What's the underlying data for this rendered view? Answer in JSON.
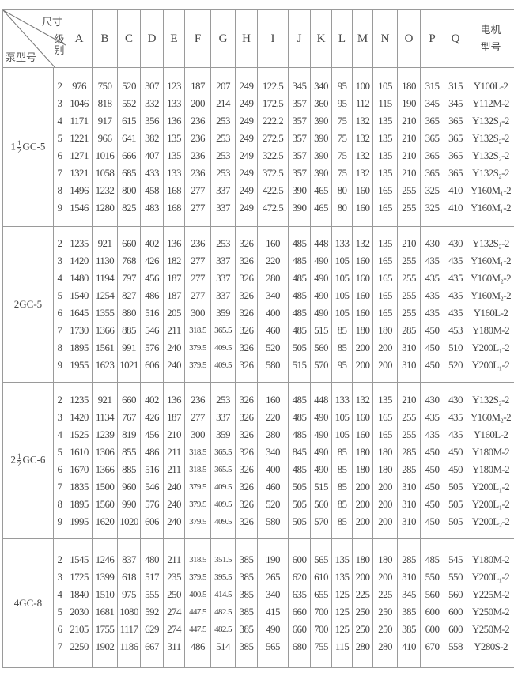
{
  "header": {
    "corner_top": "尺寸",
    "corner_mid": "级别",
    "corner_bottom": "泵型号",
    "columns": [
      "A",
      "B",
      "C",
      "D",
      "E",
      "F",
      "G",
      "H",
      "I",
      "J",
      "K",
      "L",
      "M",
      "N",
      "O",
      "P",
      "Q"
    ],
    "motor_line1": "电机",
    "motor_line2": "型号"
  },
  "groups": [
    {
      "pump": {
        "whole": "1",
        "num": "1",
        "den": "2",
        "rest": "GC-5"
      },
      "rows": [
        {
          "level": "2",
          "values": [
            "976",
            "750",
            "520",
            "307",
            "123",
            "187",
            "207",
            "249",
            "122.5",
            "345",
            "340",
            "95",
            "100",
            "105",
            "180",
            "315",
            "315"
          ],
          "motor": "Y100L-2"
        },
        {
          "level": "3",
          "values": [
            "1046",
            "818",
            "552",
            "332",
            "133",
            "200",
            "214",
            "249",
            "172.5",
            "357",
            "360",
            "95",
            "112",
            "115",
            "190",
            "345",
            "345"
          ],
          "motor": "Y112M-2"
        },
        {
          "level": "4",
          "values": [
            "1171",
            "917",
            "615",
            "356",
            "136",
            "236",
            "253",
            "249",
            "222.2",
            "357",
            "390",
            "75",
            "132",
            "135",
            "210",
            "365",
            "365"
          ],
          "motor": "Y132S₁-2"
        },
        {
          "level": "5",
          "values": [
            "1221",
            "966",
            "641",
            "382",
            "135",
            "236",
            "253",
            "249",
            "272.5",
            "357",
            "390",
            "75",
            "132",
            "135",
            "210",
            "365",
            "365"
          ],
          "motor": "Y132S₂-2"
        },
        {
          "level": "6",
          "values": [
            "1271",
            "1016",
            "666",
            "407",
            "135",
            "236",
            "253",
            "249",
            "322.5",
            "357",
            "390",
            "75",
            "132",
            "135",
            "210",
            "365",
            "365"
          ],
          "motor": "Y132S₂-2"
        },
        {
          "level": "7",
          "values": [
            "1321",
            "1058",
            "685",
            "433",
            "133",
            "236",
            "253",
            "249",
            "372.5",
            "357",
            "390",
            "75",
            "132",
            "135",
            "210",
            "365",
            "365"
          ],
          "motor": "Y132S₂-2"
        },
        {
          "level": "8",
          "values": [
            "1496",
            "1232",
            "800",
            "458",
            "168",
            "277",
            "337",
            "249",
            "422.5",
            "390",
            "465",
            "80",
            "160",
            "165",
            "255",
            "325",
            "410"
          ],
          "motor": "Y160M₁-2"
        },
        {
          "level": "9",
          "values": [
            "1546",
            "1280",
            "825",
            "483",
            "168",
            "277",
            "337",
            "249",
            "472.5",
            "390",
            "465",
            "80",
            "160",
            "165",
            "255",
            "325",
            "410"
          ],
          "motor": "Y160M₁-2"
        }
      ]
    },
    {
      "pump": {
        "whole": "",
        "num": "",
        "den": "",
        "rest": "2GC-5"
      },
      "rows": [
        {
          "level": "2",
          "values": [
            "1235",
            "921",
            "660",
            "402",
            "136",
            "236",
            "253",
            "326",
            "160",
            "485",
            "448",
            "133",
            "132",
            "135",
            "210",
            "430",
            "430"
          ],
          "motor": "Y132S₂-2"
        },
        {
          "level": "3",
          "values": [
            "1420",
            "1130",
            "768",
            "426",
            "182",
            "277",
            "337",
            "326",
            "220",
            "485",
            "490",
            "105",
            "160",
            "165",
            "255",
            "435",
            "435"
          ],
          "motor": "Y160M₁-2"
        },
        {
          "level": "4",
          "values": [
            "1480",
            "1194",
            "797",
            "456",
            "187",
            "277",
            "337",
            "326",
            "280",
            "485",
            "490",
            "105",
            "160",
            "165",
            "255",
            "435",
            "435"
          ],
          "motor": "Y160M₂-2"
        },
        {
          "level": "5",
          "values": [
            "1540",
            "1254",
            "827",
            "486",
            "187",
            "277",
            "337",
            "326",
            "340",
            "485",
            "490",
            "105",
            "160",
            "165",
            "255",
            "435",
            "435"
          ],
          "motor": "Y160M₂-2"
        },
        {
          "level": "6",
          "values": [
            "1645",
            "1355",
            "880",
            "516",
            "205",
            "300",
            "359",
            "326",
            "400",
            "485",
            "490",
            "105",
            "160",
            "165",
            "255",
            "435",
            "435"
          ],
          "motor": "Y160L-2"
        },
        {
          "level": "7",
          "values": [
            "1730",
            "1366",
            "885",
            "546",
            "211",
            "318.5",
            "365.5",
            "326",
            "460",
            "485",
            "515",
            "85",
            "180",
            "180",
            "285",
            "450",
            "453"
          ],
          "motor": "Y180M-2"
        },
        {
          "level": "8",
          "values": [
            "1895",
            "1561",
            "991",
            "576",
            "240",
            "379.5",
            "409.5",
            "326",
            "520",
            "505",
            "560",
            "85",
            "200",
            "200",
            "310",
            "450",
            "510"
          ],
          "motor": "Y200L₁-2"
        },
        {
          "level": "9",
          "values": [
            "1955",
            "1623",
            "1021",
            "606",
            "240",
            "379.5",
            "409.5",
            "326",
            "580",
            "515",
            "570",
            "95",
            "200",
            "200",
            "310",
            "450",
            "520"
          ],
          "motor": "Y200L₁-2"
        }
      ]
    },
    {
      "pump": {
        "whole": "2",
        "num": "1",
        "den": "2",
        "rest": "GC-6"
      },
      "rows": [
        {
          "level": "2",
          "values": [
            "1235",
            "921",
            "660",
            "402",
            "136",
            "236",
            "253",
            "326",
            "160",
            "485",
            "448",
            "133",
            "132",
            "135",
            "210",
            "430",
            "430"
          ],
          "motor": "Y132S₂-2"
        },
        {
          "level": "3",
          "values": [
            "1420",
            "1134",
            "767",
            "426",
            "187",
            "277",
            "337",
            "326",
            "220",
            "485",
            "490",
            "105",
            "160",
            "165",
            "255",
            "435",
            "435"
          ],
          "motor": "Y160M₂-2"
        },
        {
          "level": "4",
          "values": [
            "1525",
            "1239",
            "819",
            "456",
            "210",
            "300",
            "359",
            "326",
            "280",
            "485",
            "490",
            "105",
            "160",
            "165",
            "255",
            "435",
            "435"
          ],
          "motor": "Y160L-2"
        },
        {
          "level": "5",
          "values": [
            "1610",
            "1306",
            "855",
            "486",
            "211",
            "318.5",
            "365.5",
            "326",
            "340",
            "845",
            "490",
            "85",
            "180",
            "180",
            "285",
            "450",
            "450"
          ],
          "motor": "Y180M-2"
        },
        {
          "level": "6",
          "values": [
            "1670",
            "1366",
            "885",
            "516",
            "211",
            "318.5",
            "365.5",
            "326",
            "400",
            "485",
            "490",
            "85",
            "180",
            "180",
            "285",
            "450",
            "450"
          ],
          "motor": "Y180M-2"
        },
        {
          "level": "7",
          "values": [
            "1835",
            "1500",
            "960",
            "546",
            "240",
            "379.5",
            "409.5",
            "326",
            "460",
            "505",
            "515",
            "85",
            "200",
            "200",
            "310",
            "450",
            "505"
          ],
          "motor": "Y200L₁-2"
        },
        {
          "level": "8",
          "values": [
            "1895",
            "1560",
            "990",
            "576",
            "240",
            "379.5",
            "409.5",
            "326",
            "520",
            "505",
            "560",
            "85",
            "200",
            "200",
            "310",
            "450",
            "505"
          ],
          "motor": "Y200L₁-2"
        },
        {
          "level": "9",
          "values": [
            "1995",
            "1620",
            "1020",
            "606",
            "240",
            "379.5",
            "409.5",
            "326",
            "580",
            "505",
            "570",
            "85",
            "200",
            "200",
            "310",
            "450",
            "505"
          ],
          "motor": "Y200L₂-2"
        }
      ]
    },
    {
      "pump": {
        "whole": "",
        "num": "",
        "den": "",
        "rest": "4GC-8"
      },
      "rows": [
        {
          "level": "2",
          "values": [
            "1545",
            "1246",
            "837",
            "480",
            "211",
            "318.5",
            "351.5",
            "385",
            "190",
            "600",
            "565",
            "135",
            "180",
            "180",
            "285",
            "485",
            "545"
          ],
          "motor": "Y180M-2"
        },
        {
          "level": "3",
          "values": [
            "1725",
            "1399",
            "618",
            "517",
            "235",
            "379.5",
            "395.5",
            "385",
            "265",
            "620",
            "610",
            "135",
            "200",
            "200",
            "310",
            "550",
            "550"
          ],
          "motor": "Y200L₁-2"
        },
        {
          "level": "4",
          "values": [
            "1840",
            "1510",
            "975",
            "555",
            "250",
            "400.5",
            "414.5",
            "385",
            "340",
            "635",
            "655",
            "125",
            "225",
            "225",
            "345",
            "560",
            "560"
          ],
          "motor": "Y225M-2"
        },
        {
          "level": "5",
          "values": [
            "2030",
            "1681",
            "1080",
            "592",
            "274",
            "447.5",
            "482.5",
            "385",
            "415",
            "660",
            "700",
            "125",
            "250",
            "250",
            "385",
            "600",
            "600"
          ],
          "motor": "Y250M-2"
        },
        {
          "level": "6",
          "values": [
            "2105",
            "1755",
            "1117",
            "629",
            "274",
            "447.5",
            "482.5",
            "385",
            "490",
            "660",
            "700",
            "125",
            "250",
            "250",
            "385",
            "600",
            "600"
          ],
          "motor": "Y250M-2"
        },
        {
          "level": "7",
          "values": [
            "2250",
            "1902",
            "1186",
            "667",
            "311",
            "486",
            "514",
            "385",
            "565",
            "680",
            "755",
            "115",
            "280",
            "280",
            "410",
            "670",
            "558"
          ],
          "motor": "Y280S-2"
        }
      ]
    }
  ]
}
